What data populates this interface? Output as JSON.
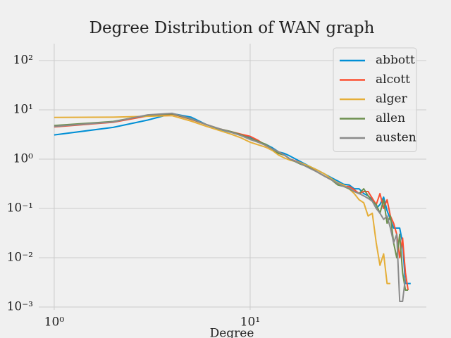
{
  "chart_data": {
    "type": "line",
    "title": "Degree Distribution of WAN graph",
    "x_label": "Degree",
    "x": [
      1,
      2,
      3,
      4,
      5,
      6,
      7,
      8,
      9,
      10,
      11,
      12,
      13,
      14,
      15,
      16,
      18,
      20,
      22,
      24,
      26,
      28,
      30,
      32,
      34,
      36,
      38,
      40,
      42,
      44,
      46,
      48,
      50,
      52,
      54,
      56,
      58,
      60,
      62,
      64,
      66
    ],
    "series": [
      {
        "name": "abbott",
        "color": "#008fd5",
        "values": [
          3.1,
          4.4,
          6.2,
          8.4,
          7.1,
          5.0,
          4.0,
          3.5,
          3.1,
          2.8,
          2.2,
          2.0,
          1.7,
          1.4,
          1.3,
          1.15,
          0.9,
          0.72,
          0.6,
          0.5,
          0.42,
          0.36,
          0.31,
          0.3,
          0.25,
          0.25,
          0.2,
          0.18,
          0.15,
          0.1,
          0.12,
          0.17,
          0.09,
          0.06,
          0.04,
          0.04,
          0.04,
          0.02,
          0.003,
          0.003,
          0.003
        ]
      },
      {
        "name": "alcott",
        "color": "#fc4f30",
        "values": [
          4.5,
          5.6,
          7.5,
          8.2,
          6.4,
          5.0,
          4.1,
          3.6,
          3.2,
          2.9,
          2.4,
          1.9,
          1.6,
          1.4,
          1.2,
          1.0,
          0.85,
          0.7,
          0.55,
          0.45,
          0.38,
          0.33,
          0.28,
          0.28,
          0.24,
          0.2,
          0.22,
          0.22,
          0.16,
          0.12,
          0.2,
          0.1,
          0.15,
          0.07,
          0.05,
          0.03,
          0.01,
          0.025,
          0.005,
          0.0022,
          null
        ]
      },
      {
        "name": "alger",
        "color": "#e5ae38",
        "values": [
          7.0,
          7.1,
          7.4,
          7.6,
          5.9,
          4.6,
          3.8,
          3.2,
          2.7,
          2.2,
          1.95,
          1.75,
          1.5,
          1.2,
          1.05,
          0.95,
          0.85,
          0.72,
          0.6,
          0.5,
          0.4,
          0.33,
          0.3,
          0.25,
          0.2,
          0.15,
          0.13,
          0.07,
          0.08,
          0.02,
          0.007,
          0.012,
          0.003,
          0.003,
          null,
          null,
          null,
          null,
          null,
          null,
          null
        ]
      },
      {
        "name": "allen",
        "color": "#6d904f",
        "values": [
          4.8,
          5.8,
          7.8,
          8.3,
          6.5,
          5.0,
          4.1,
          3.6,
          3.1,
          2.6,
          2.3,
          2.0,
          1.6,
          1.3,
          1.2,
          1.0,
          0.8,
          0.68,
          0.55,
          0.45,
          0.38,
          0.3,
          0.28,
          0.25,
          0.22,
          0.2,
          0.25,
          0.18,
          0.14,
          0.12,
          0.08,
          0.15,
          0.05,
          0.07,
          0.02,
          0.01,
          0.03,
          0.005,
          0.0022,
          0.0022,
          null
        ]
      },
      {
        "name": "austen",
        "color": "#8b8b8b",
        "values": [
          4.6,
          5.7,
          7.9,
          8.5,
          6.6,
          5.0,
          4.1,
          3.5,
          3.0,
          2.5,
          2.2,
          1.9,
          1.6,
          1.4,
          1.2,
          1.0,
          0.82,
          0.66,
          0.55,
          0.45,
          0.38,
          0.32,
          0.28,
          0.26,
          0.22,
          0.2,
          0.18,
          0.16,
          0.14,
          0.1,
          0.08,
          0.06,
          0.07,
          0.04,
          0.02,
          0.03,
          0.0013,
          0.0013,
          0.004,
          null,
          null
        ]
      }
    ],
    "xscale": "log",
    "yscale": "log",
    "xlim": [
      0.834,
      79.3
    ],
    "ylim": [
      0.000877,
      220
    ],
    "xticks": [
      {
        "value": 1,
        "label": "10⁰"
      },
      {
        "value": 10,
        "label": "10¹"
      }
    ],
    "yticks": [
      {
        "value": 0.001,
        "label": "10⁻³"
      },
      {
        "value": 0.01,
        "label": "10⁻²"
      },
      {
        "value": 0.1,
        "label": "10⁻¹"
      },
      {
        "value": 1,
        "label": "10⁰"
      },
      {
        "value": 10,
        "label": "10¹"
      },
      {
        "value": 100,
        "label": "10²"
      }
    ],
    "grid": true,
    "legend": "upper right"
  }
}
